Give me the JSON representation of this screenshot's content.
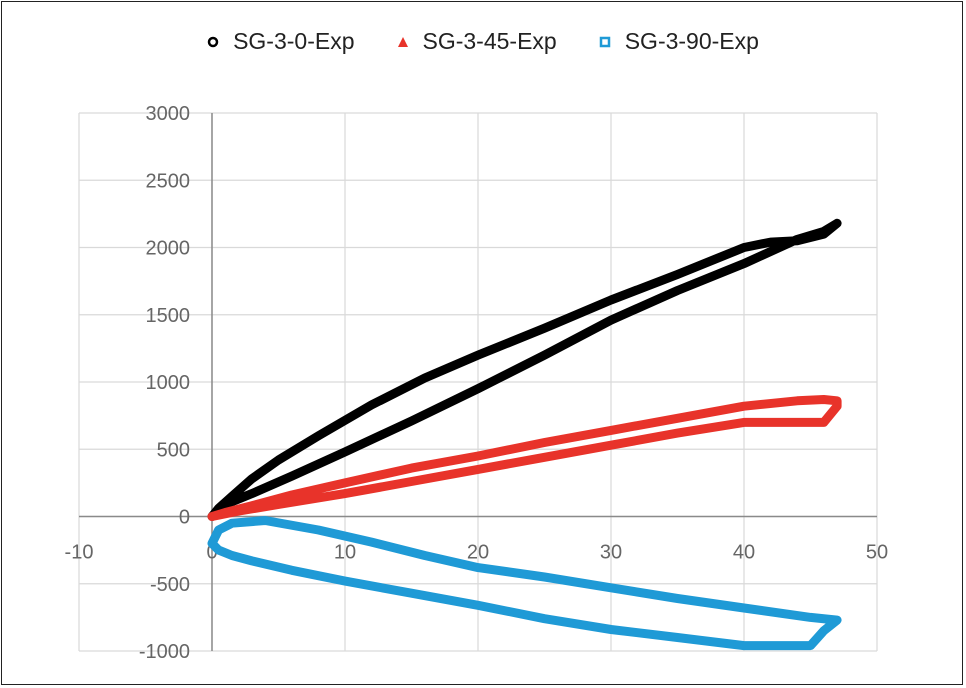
{
  "chart_data": {
    "type": "scatter",
    "title": "",
    "xlabel": "",
    "ylabel": "",
    "xlim": [
      -10,
      50
    ],
    "ylim": [
      -1000,
      3000
    ],
    "x_ticks": [
      "-10",
      "0",
      "10",
      "20",
      "30",
      "40",
      "50"
    ],
    "y_ticks": [
      "-1000",
      "-500",
      "0",
      "500",
      "1000",
      "1500",
      "2000",
      "2500",
      "3000"
    ],
    "x_tick_values": [
      -10,
      0,
      10,
      20,
      30,
      40,
      50
    ],
    "y_tick_values": [
      -1000,
      -500,
      0,
      500,
      1000,
      1500,
      2000,
      2500,
      3000
    ],
    "grid": true,
    "legend_position": "top",
    "series": [
      {
        "name": "SG-3-0-Exp",
        "color": "#000000",
        "marker": "circle",
        "x": [
          0,
          0.5,
          1.5,
          3,
          5,
          8,
          12,
          16,
          20,
          25,
          30,
          35,
          40,
          42,
          44,
          46,
          47,
          46,
          44,
          40,
          35,
          30,
          25,
          20,
          15,
          10,
          6,
          3,
          1,
          0
        ],
        "y": [
          0,
          60,
          150,
          280,
          420,
          600,
          830,
          1030,
          1200,
          1400,
          1610,
          1800,
          2000,
          2040,
          2050,
          2100,
          2180,
          2120,
          2060,
          1880,
          1680,
          1460,
          1200,
          950,
          710,
          480,
          300,
          170,
          90,
          0
        ]
      },
      {
        "name": "SG-3-45-Exp",
        "color": "#e8332a",
        "marker": "triangle",
        "x": [
          0,
          1,
          3,
          6,
          10,
          15,
          20,
          25,
          30,
          35,
          40,
          44,
          46,
          47,
          47,
          46,
          42,
          46,
          45,
          40,
          35,
          30,
          25,
          20,
          15,
          10,
          5,
          2,
          0
        ],
        "y": [
          0,
          30,
          80,
          160,
          250,
          360,
          450,
          550,
          640,
          730,
          820,
          860,
          870,
          860,
          820,
          700,
          700,
          700,
          700,
          700,
          620,
          530,
          440,
          350,
          260,
          170,
          90,
          40,
          0
        ]
      },
      {
        "name": "SG-3-90-Exp",
        "color": "#1f9ad6",
        "marker": "square",
        "x": [
          0,
          0.5,
          1.5,
          4,
          8,
          12,
          16,
          20,
          25,
          30,
          35,
          40,
          45,
          47,
          46,
          45,
          40,
          35,
          30,
          25,
          20,
          15,
          10,
          6,
          3,
          1.5,
          0.5,
          0
        ],
        "y": [
          -200,
          -100,
          -50,
          -30,
          -100,
          -190,
          -290,
          -380,
          -450,
          -530,
          -610,
          -680,
          -750,
          -770,
          -850,
          -960,
          -960,
          -900,
          -840,
          -760,
          -660,
          -570,
          -480,
          -400,
          -330,
          -290,
          -250,
          -200
        ]
      }
    ]
  }
}
